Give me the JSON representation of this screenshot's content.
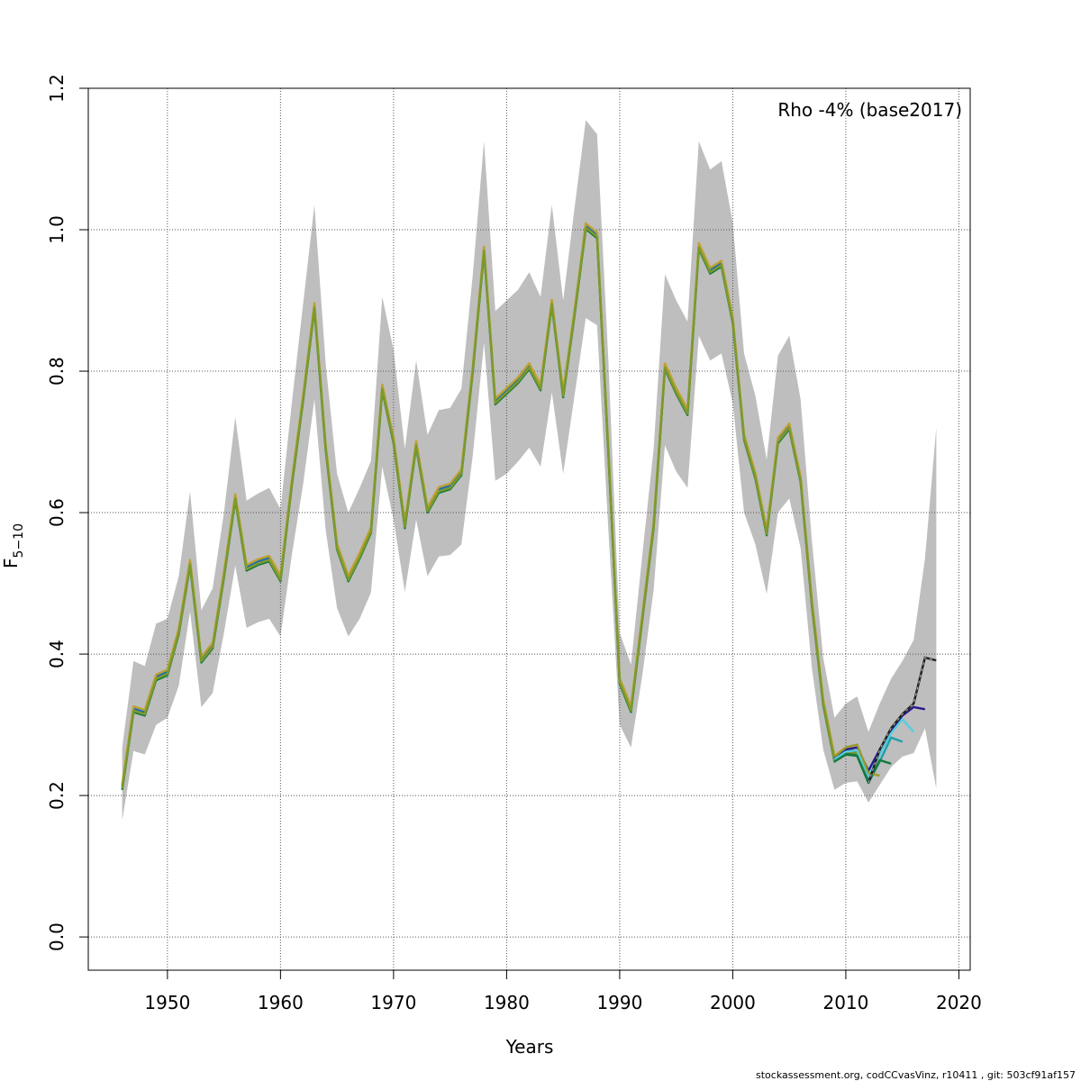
{
  "chart_data": {
    "type": "line",
    "title": "",
    "xlabel": "Years",
    "ylabel_main": "F",
    "ylabel_sub": "5−10",
    "annotation": "Rho -4% (base2017)",
    "footer": "stockassessment.org, codCCvasVinz, r10411 , git: 503cf91af157",
    "xlim": [
      1943,
      2021
    ],
    "ylim": [
      -0.047,
      1.2
    ],
    "xticks": [
      1950,
      1960,
      1970,
      1980,
      1990,
      2000,
      2010,
      2020
    ],
    "yticks": [
      0.0,
      0.2,
      0.4,
      0.6,
      0.8,
      1.0,
      1.2
    ],
    "ytick_labels": [
      "0.0",
      "0.2",
      "0.4",
      "0.6",
      "0.8",
      "1.0",
      "1.2"
    ],
    "grid": true,
    "band_color": "#bebebe",
    "base": {
      "x": [
        1946,
        1947,
        1948,
        1949,
        1950,
        1951,
        1952,
        1953,
        1954,
        1955,
        1956,
        1957,
        1958,
        1959,
        1960,
        1961,
        1962,
        1963,
        1964,
        1965,
        1966,
        1967,
        1968,
        1969,
        1970,
        1971,
        1972,
        1973,
        1974,
        1975,
        1976,
        1977,
        1978,
        1979,
        1980,
        1981,
        1982,
        1983,
        1984,
        1985,
        1986,
        1987,
        1988,
        1989,
        1990,
        1991,
        1992,
        1993,
        1994,
        1995,
        1996,
        1997,
        1998,
        1999,
        2000,
        2001,
        2002,
        2003,
        2004,
        2005,
        2006,
        2007,
        2008,
        2009,
        2010,
        2011,
        2012,
        2013,
        2014,
        2015,
        2016,
        2017,
        2018
      ],
      "y": [
        0.21,
        0.32,
        0.315,
        0.365,
        0.372,
        0.43,
        0.527,
        0.39,
        0.41,
        0.51,
        0.62,
        0.52,
        0.528,
        0.533,
        0.505,
        0.64,
        0.76,
        0.89,
        0.69,
        0.55,
        0.505,
        0.537,
        0.573,
        0.775,
        0.7,
        0.58,
        0.695,
        0.602,
        0.63,
        0.635,
        0.655,
        0.8,
        0.97,
        0.755,
        0.77,
        0.785,
        0.805,
        0.775,
        0.895,
        0.765,
        0.88,
        1.003,
        0.99,
        0.685,
        0.36,
        0.32,
        0.45,
        0.58,
        0.805,
        0.77,
        0.74,
        0.975,
        0.94,
        0.95,
        0.87,
        0.705,
        0.65,
        0.57,
        0.7,
        0.72,
        0.645,
        0.47,
        0.33,
        0.25,
        0.262,
        0.26,
        0.218,
        0.265,
        0.295,
        0.315,
        0.33,
        0.395,
        0.391
      ],
      "lower": [
        0.165,
        0.263,
        0.258,
        0.3,
        0.31,
        0.355,
        0.46,
        0.325,
        0.345,
        0.43,
        0.525,
        0.437,
        0.445,
        0.45,
        0.425,
        0.54,
        0.64,
        0.76,
        0.575,
        0.465,
        0.425,
        0.45,
        0.487,
        0.665,
        0.59,
        0.488,
        0.59,
        0.51,
        0.538,
        0.54,
        0.555,
        0.68,
        0.84,
        0.645,
        0.655,
        0.672,
        0.692,
        0.665,
        0.77,
        0.655,
        0.765,
        0.875,
        0.865,
        0.575,
        0.3,
        0.268,
        0.37,
        0.49,
        0.695,
        0.658,
        0.635,
        0.85,
        0.815,
        0.825,
        0.755,
        0.6,
        0.555,
        0.485,
        0.6,
        0.62,
        0.55,
        0.38,
        0.265,
        0.208,
        0.218,
        0.22,
        0.19,
        0.215,
        0.24,
        0.255,
        0.26,
        0.295,
        0.21
      ],
      "upper": [
        0.268,
        0.39,
        0.383,
        0.443,
        0.45,
        0.51,
        0.63,
        0.462,
        0.493,
        0.6,
        0.735,
        0.617,
        0.627,
        0.635,
        0.605,
        0.755,
        0.895,
        1.035,
        0.81,
        0.655,
        0.6,
        0.635,
        0.673,
        0.905,
        0.83,
        0.69,
        0.815,
        0.71,
        0.745,
        0.748,
        0.775,
        0.935,
        1.125,
        0.885,
        0.9,
        0.915,
        0.94,
        0.905,
        1.035,
        0.9,
        1.03,
        1.155,
        1.135,
        0.815,
        0.43,
        0.385,
        0.54,
        0.69,
        0.937,
        0.9,
        0.87,
        1.125,
        1.085,
        1.097,
        1.01,
        0.825,
        0.765,
        0.675,
        0.822,
        0.85,
        0.76,
        0.56,
        0.395,
        0.31,
        0.33,
        0.34,
        0.29,
        0.33,
        0.365,
        0.39,
        0.42,
        0.535,
        0.72
      ]
    },
    "retro_peels": [
      {
        "color": "#2a1a8c",
        "x": [
          2009,
          2010,
          2011,
          2012,
          2013,
          2014,
          2015,
          2016,
          2017
        ],
        "y": [
          0.253,
          0.265,
          0.268,
          0.235,
          0.265,
          0.292,
          0.313,
          0.325,
          0.322
        ]
      },
      {
        "color": "#55cce0",
        "x": [
          2009,
          2010,
          2011,
          2012,
          2013,
          2014,
          2015,
          2016
        ],
        "y": [
          0.251,
          0.262,
          0.264,
          0.228,
          0.258,
          0.288,
          0.308,
          0.29
        ]
      },
      {
        "color": "#1f9faa",
        "x": [
          2009,
          2010,
          2011,
          2012,
          2013,
          2014,
          2015
        ],
        "y": [
          0.248,
          0.258,
          0.256,
          0.218,
          0.248,
          0.282,
          0.276
        ]
      },
      {
        "color": "#137a3c",
        "x": [
          2009,
          2010,
          2011,
          2012,
          2013,
          2014
        ],
        "y": [
          0.248,
          0.258,
          0.256,
          0.218,
          0.25,
          0.245
        ]
      },
      {
        "color": "#9a9a2a",
        "x": [
          2009,
          2010,
          2011,
          2012,
          2013
        ],
        "y": [
          0.255,
          0.268,
          0.272,
          0.232,
          0.228
        ]
      }
    ],
    "early_retro_colors": [
      "#1f6fb0",
      "#137a3c",
      "#c0a030"
    ]
  }
}
